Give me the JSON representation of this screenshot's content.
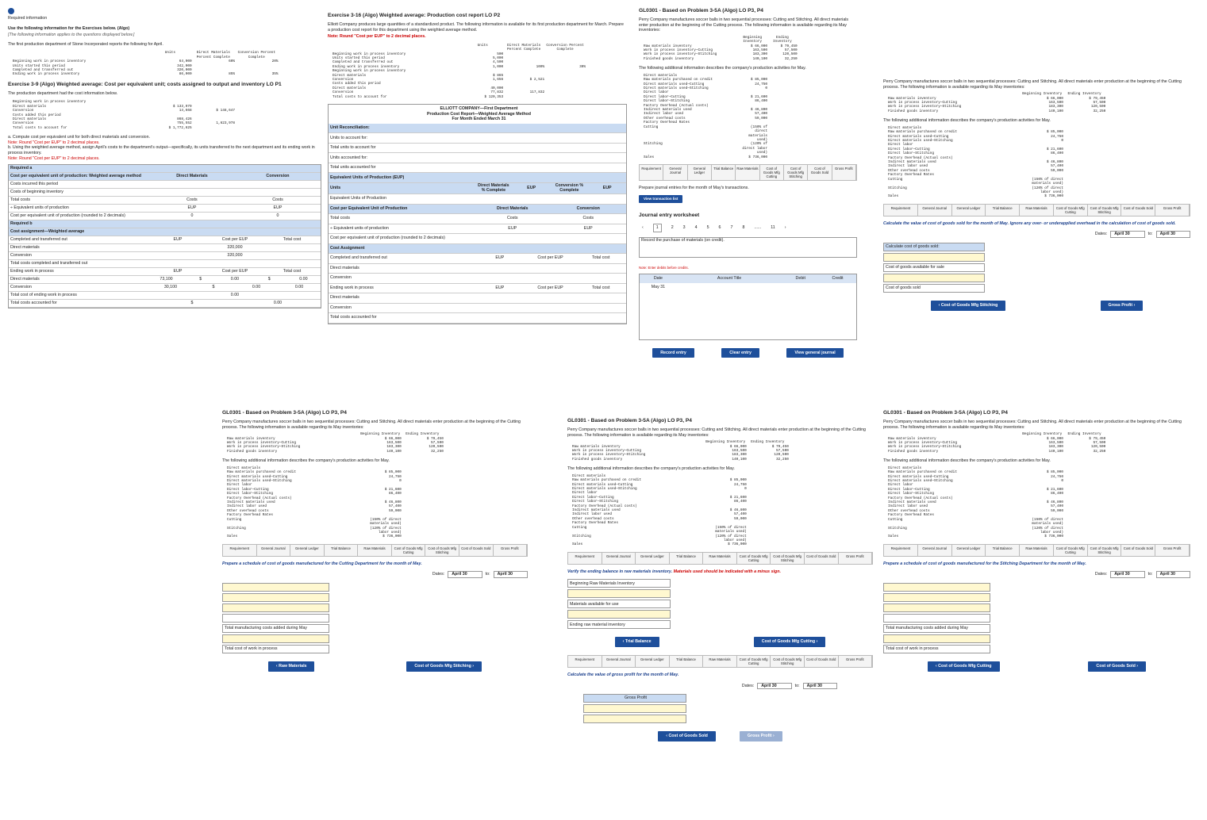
{
  "ex39": {
    "required": "Required information",
    "use": "Use the following information for the Exercises below. (Algo)",
    "applies": "[The following information applies to the questions displayed below.]",
    "intro": "The first production department of Stone Incorporated reports the following for April.",
    "units_headers": [
      "Units",
      "Direct Materials Percent Complete",
      "Conversion Percent Complete"
    ],
    "units_rows": [
      [
        "Beginning work in process inventory",
        "64,000",
        "60%",
        "20%"
      ],
      [
        "Units started this period",
        "342,000"
      ],
      [
        "Completed and transferred out",
        "320,000"
      ],
      [
        "Ending work in process inventory",
        "86,000",
        "85%",
        "35%"
      ]
    ],
    "title": "Exercise 3-9 (Algo) Weighted average: Cost per equivalent unit; costs assigned to output and inventory LO P1",
    "cost_intro": "The production department had the cost information below.",
    "cost_rows": [
      [
        "Beginning work in process inventory"
      ],
      [
        "Direct materials",
        "$ 133,979"
      ],
      [
        "Conversion",
        "14,668",
        "$ 148,647"
      ],
      [
        "Costs added this period"
      ],
      [
        "Direct materials",
        "868,426"
      ],
      [
        "Conversion",
        "755,552",
        "1,623,978"
      ],
      [
        "Total costs to account for",
        "$ 1,772,625"
      ]
    ],
    "task_a": "a. Compute cost per equivalent unit for both direct materials and conversion.",
    "note": "Note: Round \"Cost per EUP\" to 2 decimal places.",
    "task_b": "b. Using the weighted average method, assign April's costs to the department's output—specifically, its units transferred to the next department and its ending work in process inventory.",
    "grid": [
      [
        "Required a"
      ],
      [
        "Cost per equivalent unit of production: Weighted average method",
        "Direct Materials",
        "Conversion"
      ],
      [
        "Costs incurred this period"
      ],
      [
        "Costs of beginning inventory"
      ],
      [
        "Total costs",
        "Costs",
        "Costs"
      ],
      [
        "÷ Equivalent units of production",
        "EUP",
        "EUP"
      ],
      [
        "Cost per equivalent unit of production (rounded to 2 decimals)",
        "0",
        "0"
      ],
      [
        "Required b"
      ],
      [
        "Cost assignment—Weighted average"
      ],
      [
        "Completed and transferred out",
        "EUP",
        "Cost per EUP",
        "Total cost"
      ],
      [
        "Direct materials",
        "320,000"
      ],
      [
        "Conversion",
        "320,000"
      ],
      [
        "Total costs completed and transferred out"
      ],
      [
        "Ending work in process",
        "EUP",
        "Cost per EUP",
        "Total cost"
      ],
      [
        "Direct materials",
        "73,100",
        "$",
        "0.00",
        "$",
        "0.00"
      ],
      [
        "Conversion",
        "30,100",
        "$",
        "0.00",
        "0.00"
      ],
      [
        "Total cost of ending work in process",
        "0.00"
      ],
      [
        "Total costs accounted for",
        "$",
        "0.00"
      ]
    ]
  },
  "ex316": {
    "title": "Exercise 3-16 (Algo) Weighted average: Production cost report LO P2",
    "intro": "Elliott Company produces large quantities of a standardized product. The following information is available for its first production department for March. Prepare a production cost report for this department using the weighted average method.",
    "note": "Note: Round \"Cost per EUP\" to 2 decimal places.",
    "headers": [
      "Units",
      "Direct Materials Percent Complete",
      "Conversion Percent Complete"
    ],
    "rows": [
      [
        "Beginning work in process inventory",
        "500"
      ],
      [
        "Units started this period",
        "5,000"
      ],
      [
        "Completed and transferred out",
        "4,500"
      ],
      [
        "Ending work in process inventory",
        "1,000",
        "100%",
        "30%"
      ],
      [
        "Beginning work in process inventory"
      ],
      [
        "Direct materials",
        "$ 865"
      ],
      [
        "Conversion",
        "1,656",
        "$ 2,521"
      ],
      [
        "Costs added this period"
      ],
      [
        "Direct materials",
        "40,000"
      ],
      [
        "Conversion",
        "77,832",
        "117,832"
      ],
      [
        "Total costs to account for",
        "$ 120,353"
      ]
    ],
    "report_title": [
      "ELLIOTT COMPANY—First Department",
      "Production Cost Report—Weighted Average Method",
      "For Month Ended March 31"
    ],
    "report": [
      [
        "Unit Reconciliation:"
      ],
      [
        "Units to account for:"
      ],
      [
        "Total units to account for"
      ],
      [
        "Units accounted for:"
      ],
      [
        "Total units accounted for"
      ],
      [
        "Equivalent Units of Production (EUP)"
      ],
      [
        "Units",
        "Direct Materials % Complete",
        "EUP",
        "Conversion % Complete",
        "EUP"
      ],
      [
        "Equivalent Units of Production"
      ],
      [
        "Cost per Equivalent Unit of Production",
        "Direct Materials",
        "Conversion"
      ],
      [
        "Total costs",
        "Costs",
        "Costs"
      ],
      [
        "÷ Equivalent units of production",
        "EUP",
        "EUP"
      ],
      [
        "Cost per equivalent unit of production (rounded to 2 decimals)"
      ],
      [
        "Cost Assignment"
      ],
      [
        "Completed and transferred out",
        "EUP",
        "Cost per EUP",
        "Total cost"
      ],
      [
        "Direct materials"
      ],
      [
        "Conversion"
      ],
      [
        "Ending work in process",
        "EUP",
        "Cost per EUP",
        "Total cost"
      ],
      [
        "Direct materials"
      ],
      [
        "Conversion"
      ],
      [
        "Total costs accounted for"
      ]
    ]
  },
  "problem": {
    "title": "GL0301 - Based on Problem 3-5A (Algo) LO P3, P4",
    "intro": "Perry Company manufactures soccer balls in two sequential processes: Cutting and Stitching. All direct materials enter production at the beginning of the Cutting process. The following information is available regarding its May inventories:",
    "inv_headers": [
      "Beginning Inventory",
      "Ending Inventory"
    ],
    "inv_rows": [
      [
        "Raw materials inventory",
        "$ 66,000",
        "$ 79,450"
      ],
      [
        "Work in process inventory—Cutting",
        "163,500",
        "57,500"
      ],
      [
        "Work in process inventory—Stitching",
        "183,300",
        "120,500"
      ],
      [
        "Finished goods inventory",
        "140,100",
        "32,250"
      ]
    ],
    "more": "The following additional information describes the company's production activities for May.",
    "add_rows": [
      [
        "Direct materials"
      ],
      [
        "Raw materials purchased on credit",
        "$ 85,000"
      ],
      [
        "Direct materials used—Cutting",
        "24,750"
      ],
      [
        "Direct materials used—Stitching",
        "0"
      ],
      [
        "Direct labor"
      ],
      [
        "Direct labor—Cutting",
        "$ 21,600"
      ],
      [
        "Direct labor—Stitching",
        "86,400"
      ],
      [
        "Factory Overhead (Actual costs)"
      ],
      [
        "Indirect materials used",
        "$ 46,800"
      ],
      [
        "Indirect labor used",
        "57,400"
      ],
      [
        "Other overhead costs",
        "59,000"
      ],
      [
        "Factory Overhead Rates"
      ],
      [
        "Cutting",
        "(150% of direct materials used)"
      ],
      [
        "Stitching",
        "(120% of direct labor used)"
      ],
      [
        "Sales",
        "$ 736,000"
      ]
    ],
    "tabs": [
      "Requirement",
      "General Journal",
      "General Ledger",
      "Trial Balance",
      "Raw Materials",
      "Cost of Goods Mfg Cutting",
      "Cost of Goods Mfg Stitching",
      "Cost of Goods Sold",
      "Gross Profit"
    ]
  },
  "common": {
    "dates": "Dates:",
    "date": "April 30",
    "to": "to:"
  },
  "journal": {
    "instruction": "Prepare journal entries for the month of May's transactions.",
    "view_list": "View transaction list",
    "worksheet": "Journal entry worksheet",
    "pages": [
      "1",
      "2",
      "3",
      "4",
      "5",
      "6",
      "7",
      "8",
      "......",
      "11"
    ],
    "record_text": "Record the purchase of materials (on credit).",
    "note": "Note: Enter debits before credits.",
    "headers": [
      "Date",
      "Account Title",
      "Debit",
      "Credit"
    ],
    "date": "May 31",
    "buttons": [
      "Record entry",
      "Clear entry",
      "View general journal"
    ]
  },
  "cogs": {
    "instruction": "Calculate the value of cost of goods sold for the month of May. Ignore any over- or underapplied overhead in the calculation of cost of goods sold.",
    "rows": [
      "Calculate cost of goods sold:",
      "Cost of goods available for sale",
      "Cost of goods sold"
    ],
    "prev": "Cost of Goods Mfg Stitching",
    "next": "Gross Profit"
  },
  "cutting": {
    "instruction": "Prepare a schedule of cost of goods manufactured for the Cutting Department for the month of May.",
    "rows": [
      "Total manufacturing costs added during May",
      "Total cost of work in process"
    ],
    "prev": "Raw Materials",
    "next": "Cost of Goods Mfg Stitching"
  },
  "raw": {
    "instruction": "Verify the ending balance in raw materials inventory.",
    "warning": "Materials used should be indicated with a minus sign.",
    "rows": [
      "Beginning Raw Materials Inventory",
      "Materials available for use",
      "Ending raw material inventory"
    ],
    "prev": "Trial Balance",
    "next": "Cost of Goods Mfg Cutting",
    "gp_instruction": "Calculate the value of gross profit for the month of May.",
    "gp_row": "Gross Profit",
    "gp_prev": "Cost of Goods Sold",
    "gp_next": "Gross Profit"
  },
  "stitching": {
    "instruction": "Prepare a schedule of cost of goods manufactured for the Stitching Department for the month of May.",
    "rows": [
      "Total manufacturing costs added during May",
      "Total cost of work in process"
    ],
    "prev": "Cost of Goods Mfg Cutting",
    "next": "Cost of Goods Sold"
  }
}
